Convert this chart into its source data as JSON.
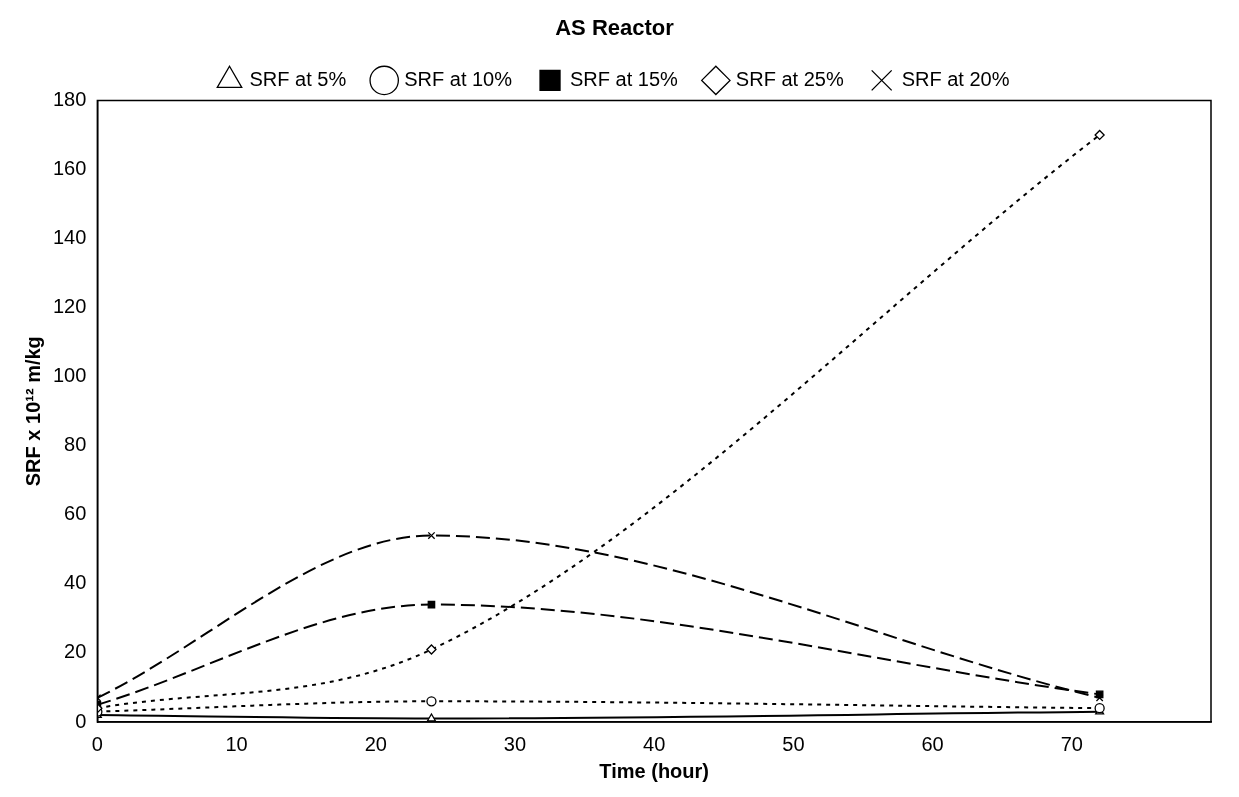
{
  "chart_data": {
    "type": "line",
    "title": "AS Reactor",
    "xlabel": "Time (hour)",
    "ylabel": "SRF x 10¹² m/kg",
    "x": [
      0,
      24,
      72
    ],
    "series": [
      {
        "name": "SRF at 5%",
        "color": "#000000",
        "values": [
          2,
          1,
          3
        ],
        "marker": "triangle",
        "line_style": "solid"
      },
      {
        "name": "SRF at 10%",
        "color": "#000000",
        "values": [
          3,
          6,
          4
        ],
        "marker": "circle",
        "line_style": "dotted"
      },
      {
        "name": "SRF at 15%",
        "color": "#000000",
        "values": [
          5,
          34,
          8
        ],
        "marker": "square",
        "line_style": "dashed"
      },
      {
        "name": "SRF at 25%",
        "color": "#000000",
        "values": [
          4,
          21,
          170
        ],
        "marker": "diamond",
        "line_style": "dotted"
      },
      {
        "name": "SRF at 20%",
        "color": "#000000",
        "values": [
          7,
          54,
          7
        ],
        "marker": "cross",
        "line_style": "dashed"
      }
    ],
    "xlim": [
      0,
      80
    ],
    "xticks": [
      0,
      10,
      20,
      30,
      40,
      50,
      60,
      70
    ],
    "ylim": [
      0,
      180
    ],
    "yticks": [
      0,
      20,
      40,
      60,
      80,
      100,
      120,
      140,
      160,
      180
    ],
    "grid": false,
    "legend": "top"
  }
}
